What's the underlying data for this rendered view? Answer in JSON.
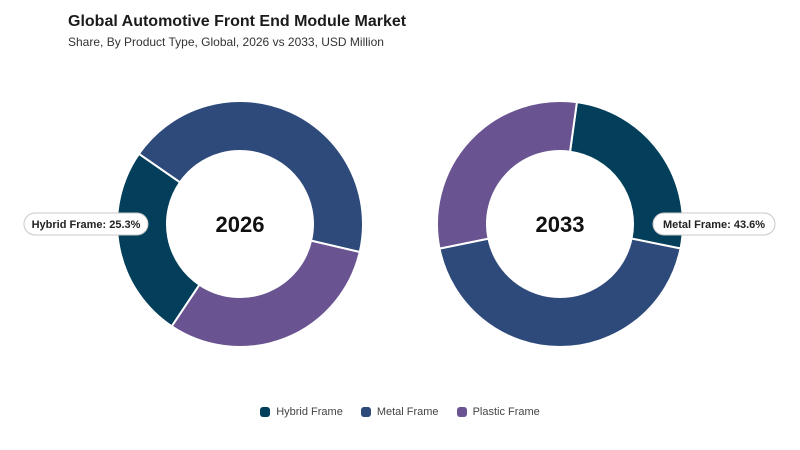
{
  "header": {
    "title": "Global Automotive Front End Module Market",
    "subtitle": "Share, By Product Type, Global, 2026 vs 2033, USD Million"
  },
  "colors": {
    "hybrid": "#033e5a",
    "metal": "#2d4a7a",
    "plastic": "#6a5391"
  },
  "chart_data": [
    {
      "type": "pie",
      "center_label": "2026",
      "categories": [
        "Hybrid Frame",
        "Metal Frame",
        "Plastic Frame"
      ],
      "values": [
        25.3,
        44.0,
        30.7
      ],
      "callout": "Hybrid Frame: 25.3%"
    },
    {
      "type": "pie",
      "center_label": "2033",
      "categories": [
        "Hybrid Frame",
        "Metal Frame",
        "Plastic Frame"
      ],
      "values": [
        26.0,
        43.6,
        30.4
      ],
      "callout": "Metal Frame: 43.6%"
    }
  ],
  "legend": [
    {
      "label": "Hybrid Frame",
      "color": "#033e5a"
    },
    {
      "label": "Metal Frame",
      "color": "#2d4a7a"
    },
    {
      "label": "Plastic Frame",
      "color": "#6a5391"
    }
  ]
}
